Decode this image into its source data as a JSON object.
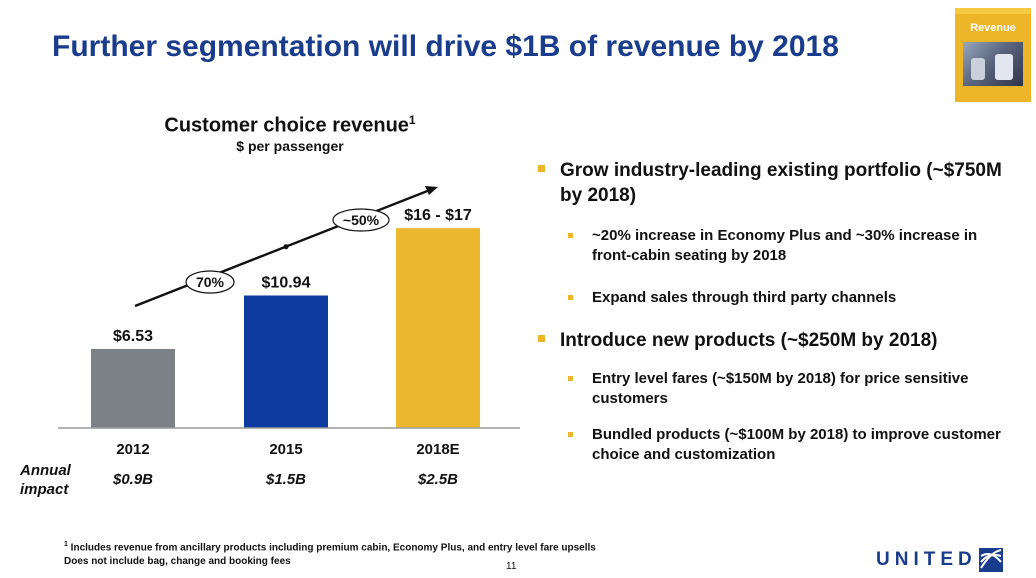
{
  "slide": {
    "title": "Further segmentation will drive $1B of revenue by 2018",
    "badge_label": "Revenue",
    "page_number": "11",
    "brand": "UNITED",
    "footnote_marker": "1",
    "footnote_line1": " Includes revenue from ancillary products including premium cabin, Economy Plus, and entry level fare upsells",
    "footnote_line2": "Does not include bag, change and booking fees"
  },
  "chart_data": {
    "type": "bar",
    "title": "Customer choice revenue",
    "title_footnote": "1",
    "subtitle": "$ per passenger",
    "categories": [
      "2012",
      "2015",
      "2018E"
    ],
    "values": [
      6.53,
      10.94,
      16.5
    ],
    "value_labels": [
      "$6.53",
      "$10.94",
      "$16 - $17"
    ],
    "colors": [
      "#7b8287",
      "#0d3a9f",
      "#ecb82f"
    ],
    "growth_labels": [
      "70%",
      "~50%"
    ],
    "annual_impact_label": "Annual impact",
    "annual_impact": [
      "$0.9B",
      "$1.5B",
      "$2.5B"
    ],
    "ylim": [
      0,
      18
    ],
    "xlabel": "",
    "ylabel": ""
  },
  "bullets": [
    {
      "text": "Grow industry-leading existing portfolio (~$750M by 2018)",
      "sub": [
        "~20% increase in Economy Plus and ~30% increase in front-cabin seating by 2018",
        "Expand sales through third party channels"
      ]
    },
    {
      "text": "Introduce new products (~$250M by 2018)",
      "sub": [
        "Entry level fares (~$150M by 2018) for price sensitive customers",
        "Bundled products (~$100M by 2018) to improve customer choice and customization"
      ]
    }
  ]
}
